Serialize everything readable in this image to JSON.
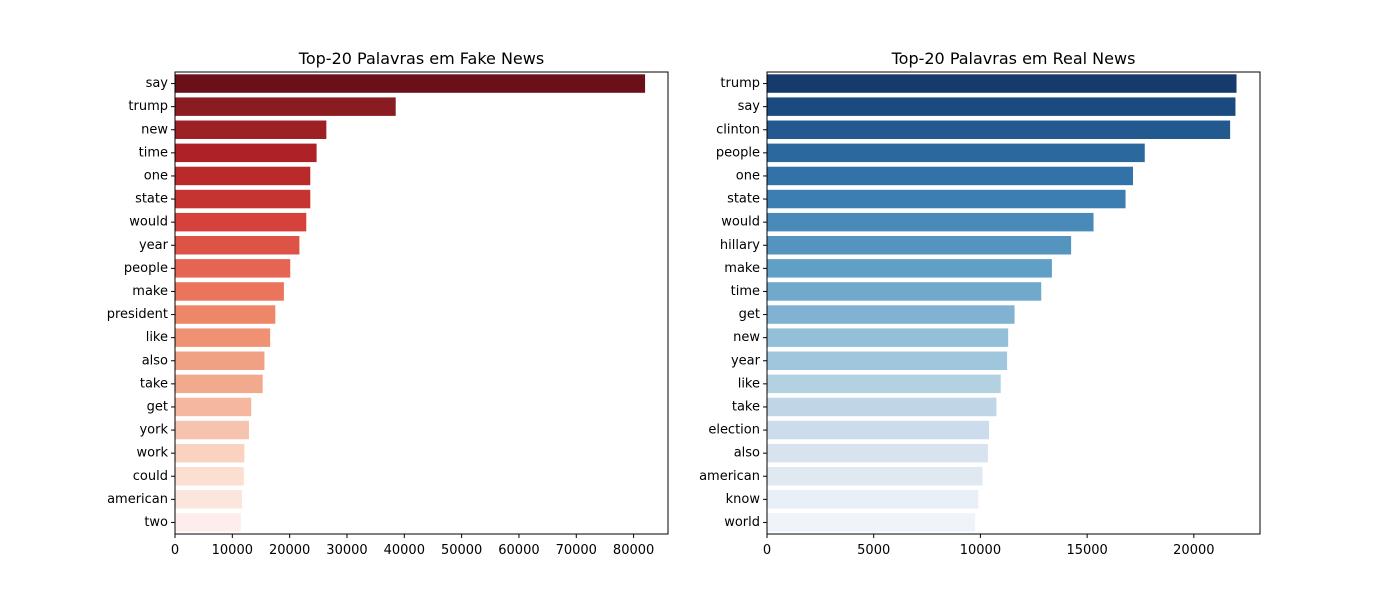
{
  "chart_data": [
    {
      "type": "bar",
      "orientation": "horizontal",
      "title": "Top-20 Palavras em Fake News",
      "xlabel": "",
      "ylabel": "",
      "categories": [
        "say",
        "trump",
        "new",
        "time",
        "one",
        "state",
        "would",
        "year",
        "people",
        "make",
        "president",
        "like",
        "also",
        "take",
        "get",
        "york",
        "work",
        "could",
        "american",
        "two"
      ],
      "values": [
        82000,
        38500,
        26400,
        24700,
        23600,
        23600,
        22900,
        21700,
        20100,
        19000,
        17500,
        16600,
        15600,
        15300,
        13300,
        12900,
        12100,
        12000,
        11700,
        11500
      ],
      "xlim": [
        0,
        86000
      ],
      "xticks": [
        0,
        10000,
        20000,
        30000,
        40000,
        50000,
        60000,
        70000,
        80000
      ],
      "grid": false,
      "palette": "Reds",
      "colors": [
        "#6b1019",
        "#891c20",
        "#9d2025",
        "#ad2127",
        "#bb2a2b",
        "#c63431",
        "#d6423b",
        "#dd5446",
        "#e56452",
        "#ea755c",
        "#ee8768",
        "#ef9274",
        "#f0a083",
        "#f2aa8e",
        "#f5b89e",
        "#f6c4ae",
        "#f9d3c0",
        "#fbdfd1",
        "#fbe5dc",
        "#fdeeeb"
      ]
    },
    {
      "type": "bar",
      "orientation": "horizontal",
      "title": "Top-20 Palavras em Real News",
      "xlabel": "",
      "ylabel": "",
      "categories": [
        "trump",
        "say",
        "clinton",
        "people",
        "one",
        "state",
        "would",
        "hillary",
        "make",
        "time",
        "get",
        "new",
        "year",
        "like",
        "take",
        "election",
        "also",
        "american",
        "know",
        "world"
      ],
      "values": [
        22000,
        21950,
        21700,
        17700,
        17150,
        16800,
        15300,
        14250,
        13350,
        12850,
        11600,
        11300,
        11250,
        10950,
        10750,
        10400,
        10350,
        10100,
        9900,
        9750
      ],
      "xlim": [
        0,
        23100
      ],
      "xticks": [
        0,
        5000,
        10000,
        15000,
        20000
      ],
      "grid": false,
      "palette": "Blues",
      "colors": [
        "#163a6b",
        "#1a4a80",
        "#225a8f",
        "#2a689e",
        "#3372a8",
        "#3d7eb2",
        "#4a8ab9",
        "#5594bf",
        "#61a0c6",
        "#70a9cc",
        "#81b2d1",
        "#93bfd9",
        "#a0c6dd",
        "#b4d1e2",
        "#c0d6e7",
        "#ccdced",
        "#d8e3ef",
        "#e0e9f2",
        "#e8eff6",
        "#eff4fa"
      ]
    }
  ]
}
